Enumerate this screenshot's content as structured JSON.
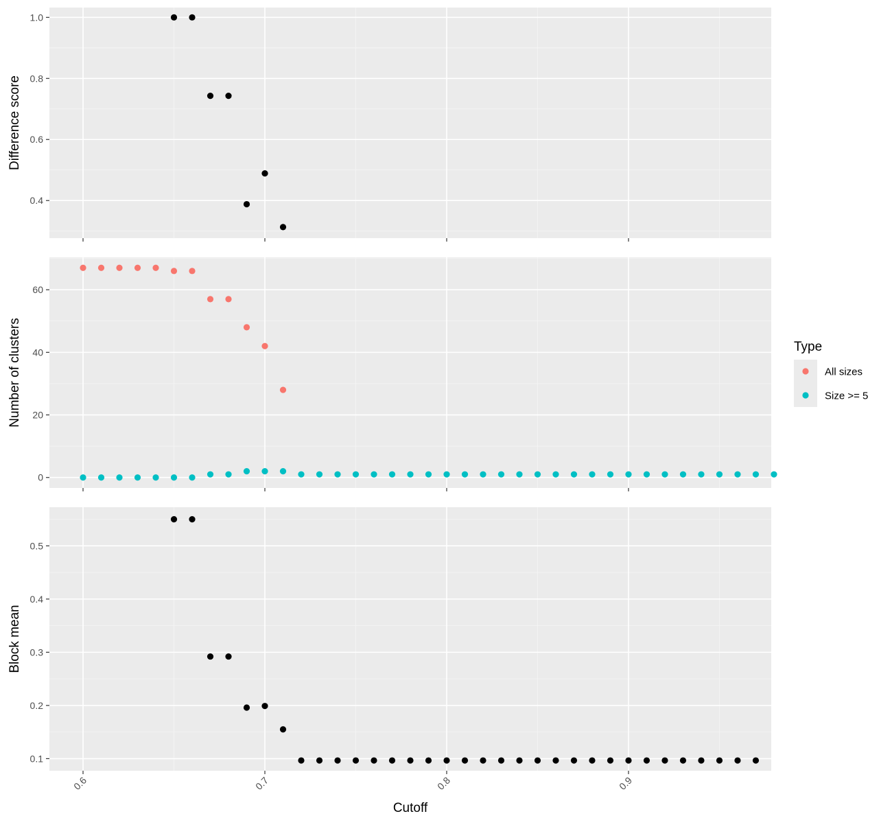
{
  "chart_data": [
    {
      "type": "scatter",
      "title": "",
      "xlabel": "",
      "ylabel": "Difference score",
      "xlim": [
        0.5815,
        0.9785
      ],
      "ylim": [
        0.2768,
        1.0322
      ],
      "xticks": [
        0.6,
        0.7,
        0.8,
        0.9
      ],
      "yticks": [
        0.4,
        0.6,
        0.8,
        1.0
      ],
      "ytick_labels": [
        "0.4",
        "0.6",
        "0.8",
        "1.0"
      ],
      "grid": true,
      "series": [
        {
          "color": "#000000",
          "points": [
            [
              0.65,
              1.0
            ],
            [
              0.66,
              1.0
            ],
            [
              0.67,
              0.743
            ],
            [
              0.68,
              0.743
            ],
            [
              0.69,
              0.388
            ],
            [
              0.7,
              0.489
            ],
            [
              0.71,
              0.313
            ]
          ]
        }
      ]
    },
    {
      "type": "scatter",
      "title": "",
      "xlabel": "",
      "ylabel": "Number of clusters",
      "xlim": [
        0.5815,
        0.9785
      ],
      "ylim": [
        -3.35,
        70.35
      ],
      "xticks": [
        0.6,
        0.7,
        0.8,
        0.9
      ],
      "yticks": [
        0,
        20,
        40,
        60
      ],
      "ytick_labels": [
        "0",
        "20",
        "40",
        "60"
      ],
      "grid": true,
      "legend": {
        "title": "Type",
        "placement": "right",
        "entries": [
          {
            "label": "All sizes",
            "color": "#F8766D"
          },
          {
            "label": "Size >= 5",
            "color": "#00BFC4"
          }
        ]
      },
      "series": [
        {
          "name": "All sizes",
          "color": "#F8766D",
          "points": [
            [
              0.6,
              67
            ],
            [
              0.61,
              67
            ],
            [
              0.62,
              67
            ],
            [
              0.63,
              67
            ],
            [
              0.64,
              67
            ],
            [
              0.65,
              66
            ],
            [
              0.66,
              66
            ],
            [
              0.67,
              57
            ],
            [
              0.68,
              57
            ],
            [
              0.69,
              48
            ],
            [
              0.7,
              42
            ],
            [
              0.71,
              28
            ]
          ]
        },
        {
          "name": "Size >= 5",
          "color": "#00BFC4",
          "points": [
            [
              0.6,
              0
            ],
            [
              0.61,
              0
            ],
            [
              0.62,
              0
            ],
            [
              0.63,
              0
            ],
            [
              0.64,
              0
            ],
            [
              0.65,
              0
            ],
            [
              0.66,
              0
            ],
            [
              0.67,
              1
            ],
            [
              0.68,
              1
            ],
            [
              0.69,
              2
            ],
            [
              0.7,
              2
            ],
            [
              0.71,
              2
            ],
            [
              0.72,
              1
            ],
            [
              0.73,
              1
            ],
            [
              0.74,
              1
            ],
            [
              0.75,
              1
            ],
            [
              0.76,
              1
            ],
            [
              0.77,
              1
            ],
            [
              0.78,
              1
            ],
            [
              0.79,
              1
            ],
            [
              0.8,
              1
            ],
            [
              0.81,
              1
            ],
            [
              0.82,
              1
            ],
            [
              0.83,
              1
            ],
            [
              0.84,
              1
            ],
            [
              0.85,
              1
            ],
            [
              0.86,
              1
            ],
            [
              0.87,
              1
            ],
            [
              0.88,
              1
            ],
            [
              0.89,
              1
            ],
            [
              0.9,
              1
            ],
            [
              0.91,
              1
            ],
            [
              0.92,
              1
            ],
            [
              0.93,
              1
            ],
            [
              0.94,
              1
            ],
            [
              0.95,
              1
            ],
            [
              0.96,
              1
            ],
            [
              0.97,
              1
            ],
            [
              0.98,
              1
            ]
          ]
        }
      ]
    },
    {
      "type": "scatter",
      "title": "",
      "xlabel": "Cutoff",
      "ylabel": "Block mean",
      "xlim": [
        0.5815,
        0.9785
      ],
      "ylim": [
        0.0773,
        0.5727
      ],
      "xticks": [
        0.6,
        0.7,
        0.8,
        0.9
      ],
      "xtick_labels": [
        "0.6",
        "0.7",
        "0.8",
        "0.9"
      ],
      "yticks": [
        0.1,
        0.2,
        0.3,
        0.4,
        0.5
      ],
      "ytick_labels": [
        "0.1",
        "0.2",
        "0.3",
        "0.4",
        "0.5"
      ],
      "grid": true,
      "series": [
        {
          "color": "#000000",
          "points": [
            [
              0.65,
              0.55
            ],
            [
              0.66,
              0.55
            ],
            [
              0.67,
              0.292
            ],
            [
              0.68,
              0.292
            ],
            [
              0.69,
              0.196
            ],
            [
              0.7,
              0.199
            ],
            [
              0.71,
              0.155
            ],
            [
              0.72,
              0.0966
            ],
            [
              0.73,
              0.0966
            ],
            [
              0.74,
              0.0966
            ],
            [
              0.75,
              0.0966
            ],
            [
              0.76,
              0.0966
            ],
            [
              0.77,
              0.0966
            ],
            [
              0.78,
              0.0966
            ],
            [
              0.79,
              0.0966
            ],
            [
              0.8,
              0.0966
            ],
            [
              0.81,
              0.0966
            ],
            [
              0.82,
              0.0966
            ],
            [
              0.83,
              0.0966
            ],
            [
              0.84,
              0.0966
            ],
            [
              0.85,
              0.0966
            ],
            [
              0.86,
              0.0966
            ],
            [
              0.87,
              0.0966
            ],
            [
              0.88,
              0.0966
            ],
            [
              0.89,
              0.0966
            ],
            [
              0.9,
              0.0966
            ],
            [
              0.91,
              0.0966
            ],
            [
              0.92,
              0.0966
            ],
            [
              0.93,
              0.0966
            ],
            [
              0.94,
              0.0966
            ],
            [
              0.95,
              0.0966
            ],
            [
              0.96,
              0.0966
            ],
            [
              0.97,
              0.0966
            ]
          ]
        }
      ]
    }
  ]
}
